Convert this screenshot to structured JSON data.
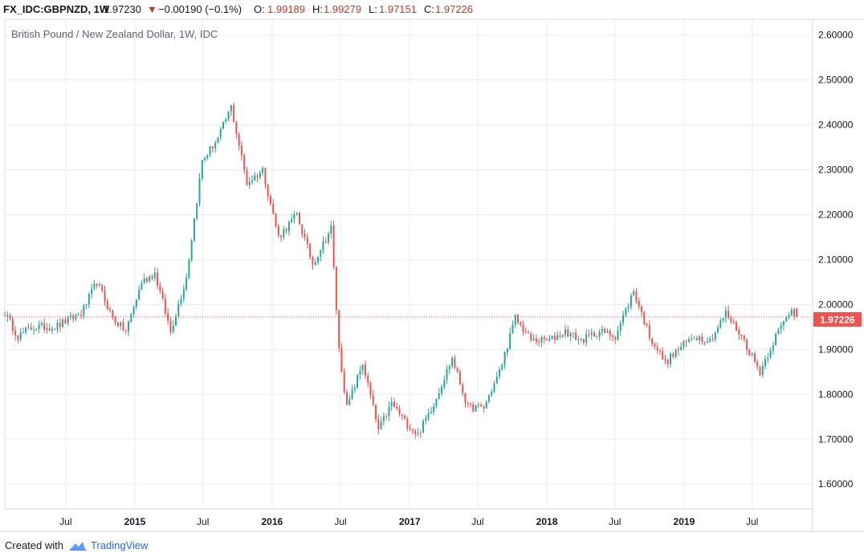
{
  "header": {
    "symbol": "FX_IDC:GBPNZD, 1W",
    "last": "1.97230",
    "change_arrow": "▼",
    "change": "−0.00190 (−0.1%)",
    "o_label": "O:",
    "o_value": "1.99189",
    "h_label": "H:",
    "h_value": "1.99279",
    "l_label": "L:",
    "l_value": "1.97151",
    "c_label": "C:",
    "c_value": "1.97226"
  },
  "footer": {
    "prefix": "Created with",
    "brand": "TradingView",
    "logo_icon": "tradingview-cloud-icon"
  },
  "colors": {
    "up": "#26a69a",
    "down": "#ef5350",
    "grid": "#e9edf2",
    "price_line": "#ef5350"
  },
  "chart_data": {
    "type": "candlestick",
    "title": "British Pound / New Zealand Dollar, 1W, IDC",
    "x_ticks": [
      "Jul",
      "2015",
      "Jul",
      "2016",
      "Jul",
      "2017",
      "Jul",
      "2018",
      "Jul",
      "2019",
      "Jul"
    ],
    "x_tick_dates": [
      "2014-07-01",
      "2015-01-01",
      "2015-07-01",
      "2016-01-01",
      "2016-07-01",
      "2017-01-01",
      "2017-07-01",
      "2018-01-01",
      "2018-07-01",
      "2019-01-01",
      "2019-07-01"
    ],
    "y_ticks": [
      "2.60000",
      "2.50000",
      "2.40000",
      "2.30000",
      "2.20000",
      "2.10000",
      "2.00000",
      "1.90000",
      "1.80000",
      "1.70000",
      "1.60000"
    ],
    "ylim": [
      1.545,
      2.635
    ],
    "x_range": [
      "2014-01-20",
      "2019-12-09"
    ],
    "last_price": "1.97226",
    "series": [
      {
        "close_path": [
          [
            "2014-01-20",
            1.98
          ],
          [
            "2014-02-24",
            1.93
          ],
          [
            "2014-04-07",
            1.95
          ],
          [
            "2014-06-02",
            1.95
          ],
          [
            "2014-08-11",
            1.98
          ],
          [
            "2014-09-22",
            2.05
          ],
          [
            "2014-11-03",
            1.97
          ],
          [
            "2014-12-08",
            1.94
          ],
          [
            "2015-01-19",
            2.05
          ],
          [
            "2015-02-23",
            2.07
          ],
          [
            "2015-04-06",
            1.94
          ],
          [
            "2015-05-18",
            2.06
          ],
          [
            "2015-06-29",
            2.32
          ],
          [
            "2015-08-10",
            2.37
          ],
          [
            "2015-09-14",
            2.44
          ],
          [
            "2015-10-26",
            2.27
          ],
          [
            "2015-12-07",
            2.3
          ],
          [
            "2016-01-18",
            2.15
          ],
          [
            "2016-03-07",
            2.2
          ],
          [
            "2016-04-18",
            2.09
          ],
          [
            "2016-06-06",
            2.17
          ],
          [
            "2016-06-27",
            1.9
          ],
          [
            "2016-07-18",
            1.77
          ],
          [
            "2016-08-29",
            1.87
          ],
          [
            "2016-10-10",
            1.72
          ],
          [
            "2016-11-14",
            1.78
          ],
          [
            "2016-12-19",
            1.74
          ],
          [
            "2017-01-23",
            1.71
          ],
          [
            "2017-03-06",
            1.78
          ],
          [
            "2017-04-24",
            1.88
          ],
          [
            "2017-06-05",
            1.77
          ],
          [
            "2017-07-17",
            1.77
          ],
          [
            "2017-08-28",
            1.85
          ],
          [
            "2017-10-09",
            1.97
          ],
          [
            "2017-11-20",
            1.92
          ],
          [
            "2018-01-08",
            1.92
          ],
          [
            "2018-02-19",
            1.94
          ],
          [
            "2018-04-02",
            1.92
          ],
          [
            "2018-05-21",
            1.94
          ],
          [
            "2018-07-02",
            1.93
          ],
          [
            "2018-08-20",
            2.03
          ],
          [
            "2018-10-01",
            1.93
          ],
          [
            "2018-11-12",
            1.87
          ],
          [
            "2018-12-17",
            1.9
          ],
          [
            "2019-01-28",
            1.93
          ],
          [
            "2019-03-11",
            1.92
          ],
          [
            "2019-04-22",
            1.98
          ],
          [
            "2019-06-03",
            1.93
          ],
          [
            "2019-07-22",
            1.85
          ],
          [
            "2019-09-02",
            1.93
          ],
          [
            "2019-10-14",
            1.99
          ],
          [
            "2019-10-28",
            1.97226
          ]
        ]
      }
    ]
  }
}
